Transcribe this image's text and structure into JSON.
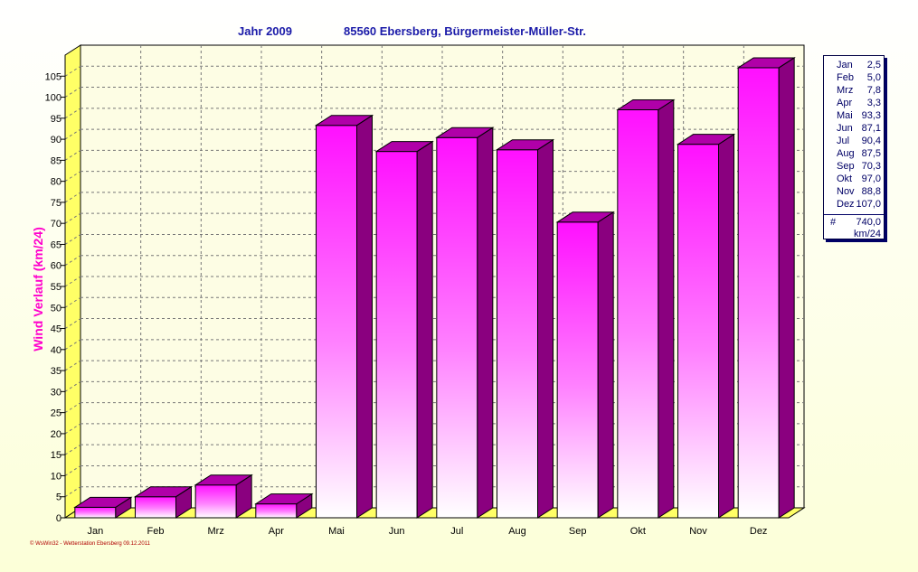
{
  "header": {
    "year_label": "Jahr  2009",
    "location": "85560 Ebersberg, Bürgermeister-Müller-Str."
  },
  "chart_data": {
    "type": "bar",
    "title": "Jahr  2009",
    "subtitle": "85560 Ebersberg, Bürgermeister-Müller-Str.",
    "ylabel": "Wind Verlauf  (km/24)",
    "xlabel": "",
    "categories": [
      "Jan",
      "Feb",
      "Mrz",
      "Apr",
      "Mai",
      "Jun",
      "Jul",
      "Aug",
      "Sep",
      "Okt",
      "Nov",
      "Dez"
    ],
    "values": [
      2.5,
      5.0,
      7.8,
      3.3,
      93.3,
      87.1,
      90.4,
      87.5,
      70.3,
      97.0,
      88.8,
      107.0
    ],
    "ylim": [
      0,
      110
    ],
    "yticks": [
      0,
      5,
      10,
      15,
      20,
      25,
      30,
      35,
      40,
      45,
      50,
      55,
      60,
      65,
      70,
      75,
      80,
      85,
      90,
      95,
      100,
      105
    ],
    "grid": true,
    "legend_position": "right",
    "bar_color": "#ff00ff",
    "bar_side_color": "#8a007f",
    "bar_top_color": "#b000a8"
  },
  "legend": {
    "rows": [
      {
        "month": "Jan",
        "value": "2,5"
      },
      {
        "month": "Feb",
        "value": "5,0"
      },
      {
        "month": "Mrz",
        "value": "7,8"
      },
      {
        "month": "Apr",
        "value": "3,3"
      },
      {
        "month": "Mai",
        "value": "93,3"
      },
      {
        "month": "Jun",
        "value": "87,1"
      },
      {
        "month": "Jul",
        "value": "90,4"
      },
      {
        "month": "Aug",
        "value": "87,5"
      },
      {
        "month": "Sep",
        "value": "70,3"
      },
      {
        "month": "Okt",
        "value": "97,0"
      },
      {
        "month": "Nov",
        "value": "88,8"
      },
      {
        "month": "Dez",
        "value": "107,0"
      }
    ],
    "total_label": "#",
    "total_value": "740,0",
    "unit": "km/24"
  },
  "footer": "© WsWin32 - Wetterstation Ebersberg  09.12.2011"
}
